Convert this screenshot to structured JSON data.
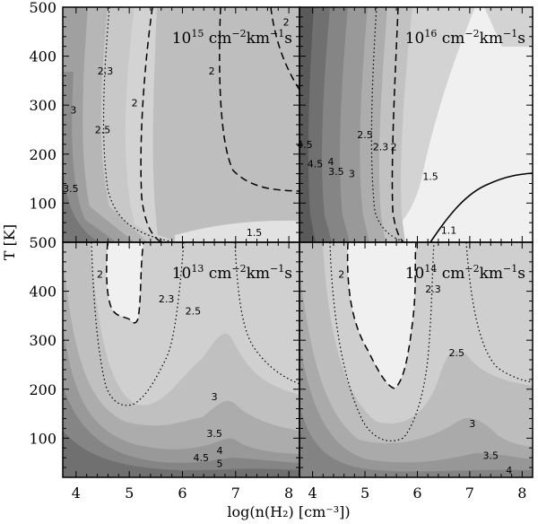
{
  "chart_data": {
    "type": "contour",
    "xlabel": "log(n(H₂) [cm⁻³])",
    "ylabel": "T [K]",
    "xlim": [
      3.75,
      8.2
    ],
    "ylim": [
      20,
      500
    ],
    "x_ticks": [
      "4",
      "5",
      "6",
      "7",
      "8"
    ],
    "y_ticks_top": [
      "100",
      "200",
      "300",
      "400",
      "500"
    ],
    "y_ticks_bottom": [
      "100",
      "200",
      "300",
      "400",
      "500"
    ],
    "fill_colors": [
      "#f0f0f0",
      "#d3d3d3",
      "#c0c0c0",
      "#acacac",
      "#999999",
      "#858585",
      "#707070",
      "#5a5a5a"
    ],
    "panels": [
      {
        "id": "top-left",
        "title_base": "10",
        "title_exp": "15",
        "title_units": [
          " cm",
          "−2",
          "km",
          "−1",
          "s"
        ],
        "labels": [
          {
            "text": "2.3",
            "x": 4.55,
            "y": 370
          },
          {
            "text": "2",
            "x": 5.1,
            "y": 305
          },
          {
            "text": "2",
            "x": 6.55,
            "y": 370
          },
          {
            "text": "2",
            "x": 7.95,
            "y": 470
          },
          {
            "text": "3",
            "x": 3.95,
            "y": 290
          },
          {
            "text": "2.5",
            "x": 4.5,
            "y": 250
          },
          {
            "text": "3.5",
            "x": 3.9,
            "y": 130
          },
          {
            "text": "1.5",
            "x": 7.35,
            "y": 40
          }
        ]
      },
      {
        "id": "top-right",
        "title_base": "10",
        "title_exp": "16",
        "title_units": [
          " cm",
          "−2",
          "km",
          "−1",
          "s"
        ],
        "labels": [
          {
            "text": "4.5",
            "x": 3.85,
            "y": 220
          },
          {
            "text": "4.5",
            "x": 4.05,
            "y": 180
          },
          {
            "text": "4",
            "x": 4.35,
            "y": 185
          },
          {
            "text": "3.5",
            "x": 4.45,
            "y": 165
          },
          {
            "text": "3",
            "x": 4.75,
            "y": 160
          },
          {
            "text": "2.5",
            "x": 5.0,
            "y": 240
          },
          {
            "text": "2.3",
            "x": 5.3,
            "y": 215
          },
          {
            "text": "2",
            "x": 5.55,
            "y": 215
          },
          {
            "text": "1.5",
            "x": 6.25,
            "y": 155
          },
          {
            "text": "1.1",
            "x": 6.6,
            "y": 45
          }
        ]
      },
      {
        "id": "bottom-left",
        "title_base": "10",
        "title_exp": "13",
        "title_units": [
          " cm",
          "−2",
          "km",
          "−1",
          "s"
        ],
        "labels": [
          {
            "text": "2",
            "x": 4.45,
            "y": 435
          },
          {
            "text": "2.3",
            "x": 5.7,
            "y": 385
          },
          {
            "text": "2.5",
            "x": 6.2,
            "y": 360
          },
          {
            "text": "3",
            "x": 6.6,
            "y": 185
          },
          {
            "text": "3.5",
            "x": 6.6,
            "y": 110
          },
          {
            "text": "4.5",
            "x": 6.35,
            "y": 60
          },
          {
            "text": "4",
            "x": 6.7,
            "y": 75
          },
          {
            "text": "5",
            "x": 6.7,
            "y": 48
          }
        ]
      },
      {
        "id": "bottom-right",
        "title_base": "10",
        "title_exp": "14",
        "title_units": [
          " cm",
          "−2",
          "km",
          "−1",
          "s"
        ],
        "labels": [
          {
            "text": "2",
            "x": 4.55,
            "y": 435
          },
          {
            "text": "2.3",
            "x": 6.3,
            "y": 405
          },
          {
            "text": "2.5",
            "x": 6.75,
            "y": 275
          },
          {
            "text": "3",
            "x": 7.05,
            "y": 130
          },
          {
            "text": "3.5",
            "x": 7.4,
            "y": 65
          },
          {
            "text": "4",
            "x": 7.75,
            "y": 35
          }
        ]
      }
    ]
  }
}
